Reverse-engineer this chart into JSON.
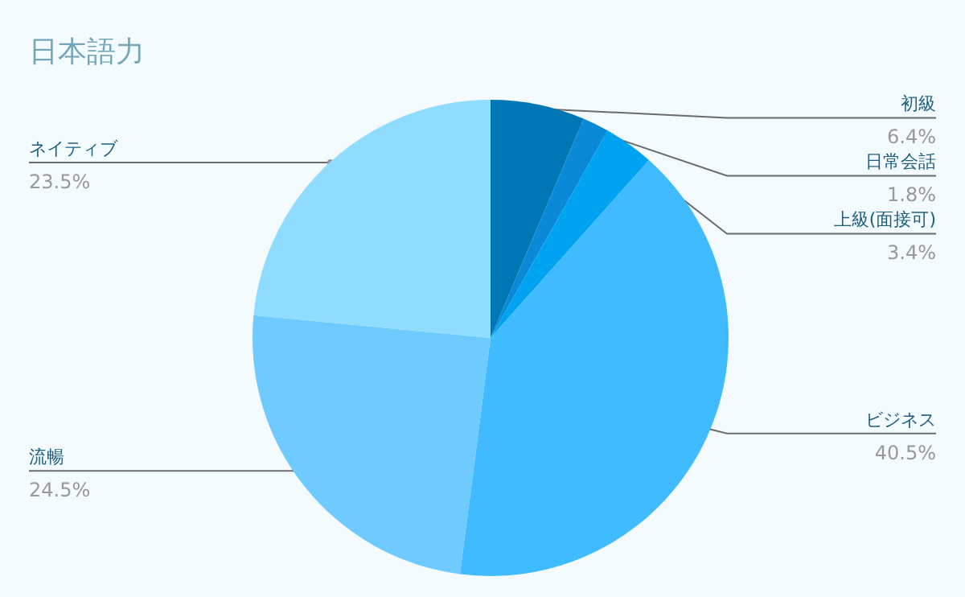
{
  "chart_data": {
    "type": "pie",
    "title": "日本語力",
    "categories": [
      "初級",
      "日常会話",
      "上級(面接可)",
      "ビジネス",
      "流暢",
      "ネイティブ"
    ],
    "values": [
      6.4,
      1.8,
      3.4,
      40.5,
      24.5,
      23.5
    ],
    "colors": [
      "#0077b5",
      "#0a8ad6",
      "#00a2f2",
      "#40bbff",
      "#6fcbff",
      "#8fdcff"
    ],
    "value_labels": [
      "6.4%",
      "1.8%",
      "3.4%",
      "40.5%",
      "24.5%",
      "23.5%"
    ]
  }
}
